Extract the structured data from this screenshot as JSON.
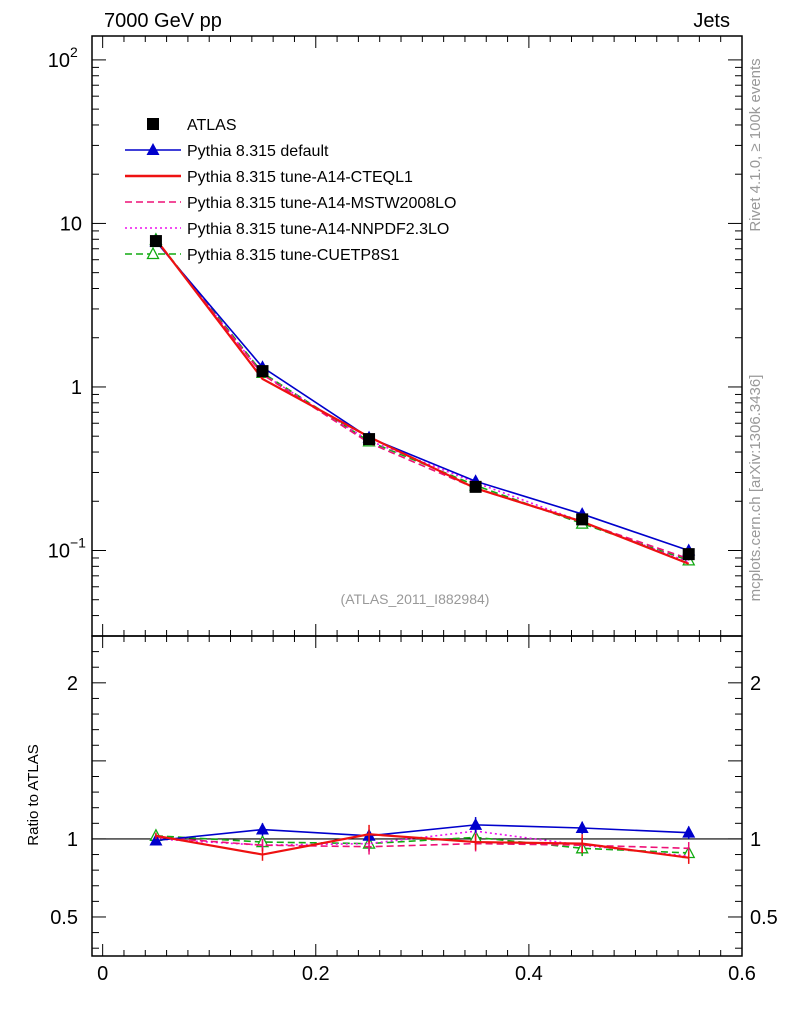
{
  "header": {
    "left": "7000 GeV pp",
    "right": "Jets"
  },
  "side_labels": {
    "top": "Rivet 4.1.0, ≥ 100k events",
    "bottom": "mcplots.cern.ch [arXiv:1306.3436]"
  },
  "watermark": "(ATLAS_2011_I882984)",
  "colors": {
    "data": "#000000",
    "default": "#0000cc",
    "cteql1": "#ee1111",
    "mstw": "#ee1177",
    "nnpdf": "#ee11ee",
    "cuetp8s1": "#11aa11"
  },
  "chart_data": [
    {
      "type": "line",
      "panel": "main",
      "yscale": "log",
      "xlim": [
        -0.01,
        0.6
      ],
      "ylim": [
        0.03,
        140
      ],
      "x": [
        0.05,
        0.15,
        0.25,
        0.35,
        0.45,
        0.55
      ],
      "xlabel": "",
      "ylabel": "",
      "yticks": [
        {
          "value": 100,
          "base": "10",
          "exp": "2"
        },
        {
          "value": 10,
          "base": "10",
          "exp": ""
        },
        {
          "value": 1,
          "base": "1",
          "exp": ""
        },
        {
          "value": 0.1,
          "base": "10",
          "exp": "−1"
        }
      ],
      "legend_position": "top-left",
      "series": [
        {
          "name": "ATLAS",
          "key": "data",
          "style": "marker",
          "marker": "square",
          "values": [
            7.8,
            1.25,
            0.48,
            0.245,
            0.155,
            0.095
          ],
          "errors": [
            0.3,
            0.06,
            0.03,
            0.015,
            0.01,
            0.008
          ]
        },
        {
          "name": "Pythia 8.315 default",
          "key": "default",
          "style": "solid",
          "marker": "triangle",
          "values": [
            7.75,
            1.32,
            0.49,
            0.265,
            0.167,
            0.1
          ]
        },
        {
          "name": "Pythia 8.315 tune-A14-CTEQL1",
          "key": "cteql1",
          "style": "solid",
          "marker": "none",
          "values": [
            8.0,
            1.12,
            0.495,
            0.24,
            0.15,
            0.083
          ]
        },
        {
          "name": "Pythia 8.315 tune-A14-MSTW2008LO",
          "key": "mstw",
          "style": "dashed",
          "marker": "none",
          "values": [
            7.9,
            1.19,
            0.455,
            0.24,
            0.149,
            0.089
          ]
        },
        {
          "name": "Pythia 8.315 tune-A14-NNPDF2.3LO",
          "key": "nnpdf",
          "style": "dotted",
          "marker": "none",
          "values": [
            7.85,
            1.2,
            0.47,
            0.26,
            0.15,
            0.085
          ]
        },
        {
          "name": "Pythia 8.315 tune-CUETP8S1",
          "key": "cuetp8s1",
          "style": "dashed",
          "marker": "open-triangle",
          "values": [
            7.95,
            1.22,
            0.465,
            0.25,
            0.146,
            0.087
          ]
        }
      ]
    },
    {
      "type": "line",
      "panel": "ratio",
      "xlim": [
        -0.01,
        0.6
      ],
      "ylim": [
        0.25,
        2.3
      ],
      "x": [
        0.05,
        0.15,
        0.25,
        0.35,
        0.45,
        0.55
      ],
      "xlabel": "",
      "ylabel": "Ratio to ATLAS",
      "yticks": [
        {
          "value": 2,
          "label": "2"
        },
        {
          "value": 1,
          "label": "1"
        },
        {
          "value": 0.5,
          "label": "0.5"
        }
      ],
      "xticks": [
        {
          "value": 0,
          "label": "0"
        },
        {
          "value": 0.2,
          "label": "0.2"
        },
        {
          "value": 0.4,
          "label": "0.4"
        },
        {
          "value": 0.6,
          "label": "0.6"
        }
      ],
      "series": [
        {
          "name": "Pythia 8.315 default",
          "key": "default",
          "style": "solid",
          "marker": "triangle",
          "values": [
            0.99,
            1.06,
            1.02,
            1.09,
            1.07,
            1.04
          ],
          "errors": [
            0.02,
            0.04,
            0.04,
            0.05,
            0.04,
            0.04
          ]
        },
        {
          "name": "Pythia 8.315 tune-A14-CTEQL1",
          "key": "cteql1",
          "style": "solid",
          "marker": "none",
          "values": [
            1.02,
            0.9,
            1.03,
            0.98,
            0.97,
            0.88
          ],
          "errors": [
            0.02,
            0.04,
            0.06,
            0.05,
            0.06,
            0.04
          ]
        },
        {
          "name": "Pythia 8.315 tune-A14-MSTW2008LO",
          "key": "mstw",
          "style": "dashed",
          "marker": "none",
          "values": [
            1.01,
            0.96,
            0.95,
            0.97,
            0.96,
            0.94
          ],
          "errors": [
            0.02,
            0.04,
            0.05,
            0.05,
            0.05,
            0.04
          ]
        },
        {
          "name": "Pythia 8.315 tune-A14-NNPDF2.3LO",
          "key": "nnpdf",
          "style": "dotted",
          "marker": "none",
          "values": [
            1.0,
            0.96,
            0.97,
            1.05,
            0.96,
            0.89
          ],
          "errors": [
            0.02,
            0.04,
            0.05,
            0.05,
            0.05,
            0.04
          ]
        },
        {
          "name": "Pythia 8.315 tune-CUETP8S1",
          "key": "cuetp8s1",
          "style": "dashed",
          "marker": "open-triangle",
          "values": [
            1.02,
            0.98,
            0.97,
            1.01,
            0.94,
            0.91
          ],
          "errors": [
            0.02,
            0.04,
            0.05,
            0.05,
            0.05,
            0.04
          ]
        }
      ]
    }
  ]
}
